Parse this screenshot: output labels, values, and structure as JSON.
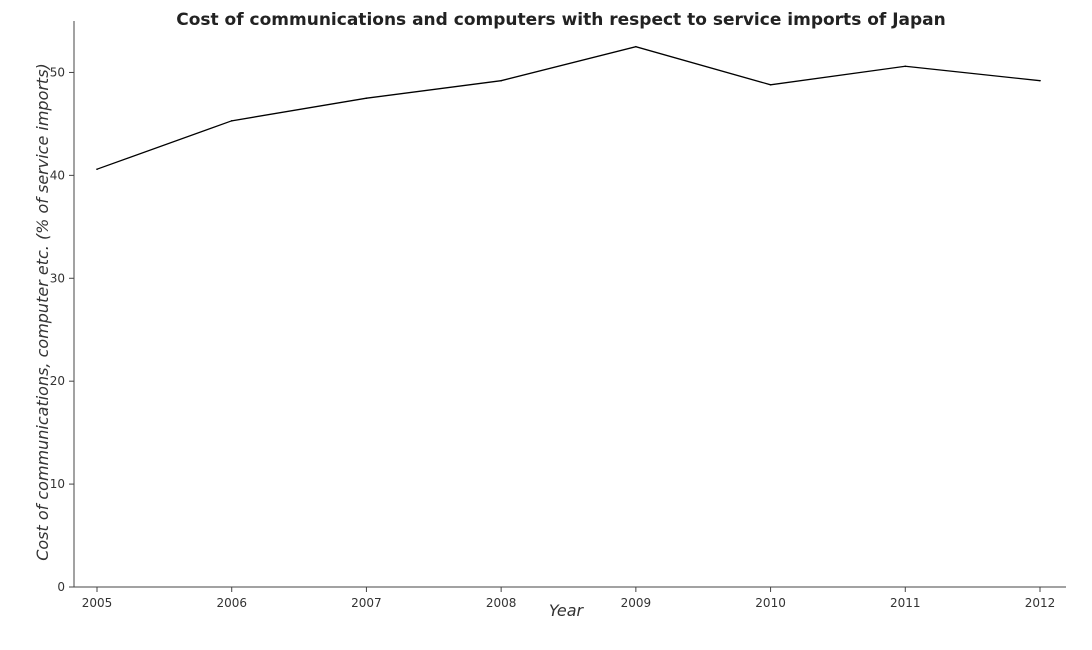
{
  "chart_data": {
    "type": "line",
    "title": "Cost of communications and computers with respect to service imports of Japan",
    "xlabel": "Year",
    "ylabel": "Cost of communications, computer etc. (% of service imports)",
    "x": [
      "2005",
      "2006",
      "2007",
      "2008",
      "2009",
      "2010",
      "2011",
      "2012"
    ],
    "series": [
      {
        "values": [
          40.6,
          45.3,
          47.5,
          49.2,
          52.5,
          48.8,
          50.6,
          49.2
        ]
      }
    ],
    "ylim": [
      0,
      55
    ],
    "yticks": [
      0,
      10,
      20,
      30,
      40,
      50
    ],
    "grid": false,
    "line_color": "#000000"
  }
}
